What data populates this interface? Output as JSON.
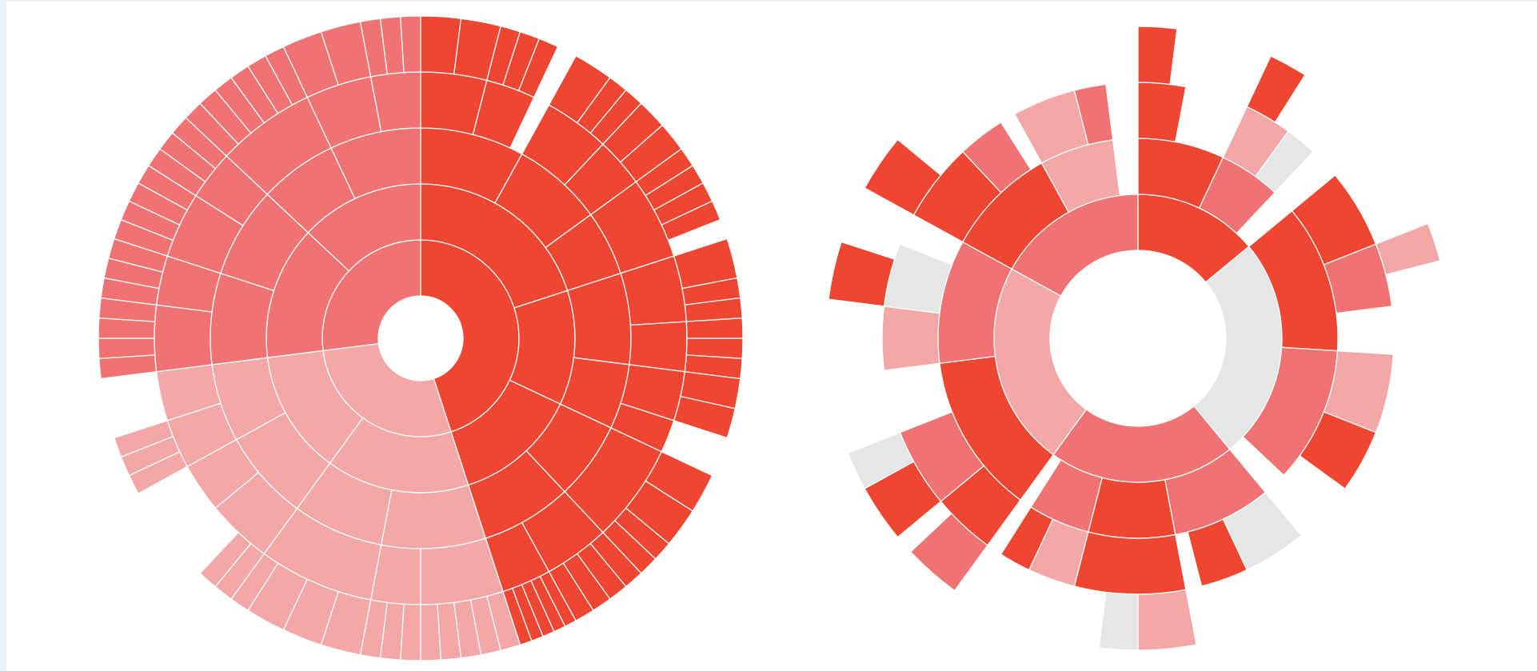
{
  "chart_data": [
    {
      "type": "sunburst",
      "nodes": [
        {
          "value": 45,
          "color": "#ee4631",
          "children": [
            {
              "value": 20,
              "children": [
                {
                  "value": 8,
                  "children": [
                    {
                      "value": 4,
                      "children": [
                        2,
                        2
                      ]
                    },
                    {
                      "value": 3,
                      "children": [
                        1,
                        1,
                        1
                      ]
                    }
                  ]
                },
                {
                  "value": 7,
                  "children": [
                    {
                      "value": 4,
                      "children": [
                        2,
                        1,
                        1
                      ]
                    },
                    {
                      "value": 3,
                      "children": [
                        1.5,
                        1.5
                      ]
                    }
                  ]
                },
                {
                  "value": 5,
                  "children": [
                    {
                      "value": 5,
                      "children": [
                        1,
                        1,
                        1,
                        1
                      ]
                    }
                  ]
                }
              ]
            },
            {
              "value": 12,
              "children": [
                {
                  "value": 7,
                  "children": [
                    {
                      "value": 4,
                      "children": [
                        2,
                        1,
                        1
                      ]
                    },
                    {
                      "value": 3,
                      "children": [
                        1,
                        1,
                        1
                      ]
                    }
                  ]
                },
                {
                  "value": 5,
                  "children": [
                    {
                      "value": 3,
                      "children": [
                        1.5,
                        1.5
                      ]
                    },
                    2
                  ]
                }
              ]
            },
            {
              "value": 13,
              "children": [
                {
                  "value": 6,
                  "children": [
                    {
                      "value": 6,
                      "children": [
                        2,
                        2,
                        1,
                        1
                      ]
                    }
                  ]
                },
                {
                  "value": 7,
                  "children": [
                    {
                      "value": 4,
                      "children": [
                        1,
                        1,
                        1,
                        1
                      ]
                    },
                    {
                      "value": 3,
                      "children": [
                        0.6,
                        0.6,
                        0.6,
                        0.6,
                        0.6
                      ]
                    }
                  ]
                }
              ]
            }
          ]
        },
        {
          "value": 28,
          "color": "#f4a7a7",
          "children": [
            {
              "value": 15,
              "children": [
                {
                  "value": 8,
                  "children": [
                    {
                      "value": 5,
                      "children": [
                        1,
                        1,
                        1,
                        1,
                        1
                      ]
                    },
                    {
                      "value": 3,
                      "children": [
                        1,
                        1,
                        1
                      ]
                    }
                  ]
                },
                {
                  "value": 7,
                  "children": [
                    {
                      "value": 7,
                      "children": [
                        2,
                        2,
                        2,
                        1
                      ]
                    }
                  ]
                }
              ]
            },
            {
              "value": 13,
              "children": [
                {
                  "value": 7,
                  "children": [
                    {
                      "value": 4,
                      "children": [
                        1,
                        1
                      ]
                    },
                    3
                  ]
                },
                {
                  "value": 6,
                  "children": [
                    {
                      "value": 3,
                      "children": [
                        1,
                        1,
                        1
                      ]
                    },
                    3
                  ]
                }
              ]
            }
          ]
        },
        {
          "value": 27,
          "color": "#f07272",
          "children": [
            {
              "value": 14,
              "children": [
                {
                  "value": 7,
                  "children": [
                    {
                      "value": 4,
                      "children": [
                        1,
                        1,
                        1,
                        1
                      ]
                    },
                    {
                      "value": 3,
                      "children": [
                        1,
                        1,
                        1
                      ]
                    }
                  ]
                },
                {
                  "value": 7,
                  "children": [
                    {
                      "value": 4,
                      "children": [
                        1,
                        1,
                        1,
                        1
                      ]
                    },
                    {
                      "value": 3,
                      "children": [
                        1,
                        1,
                        1
                      ]
                    }
                  ]
                }
              ]
            },
            {
              "value": 13,
              "children": [
                {
                  "value": 6,
                  "children": [
                    {
                      "value": 6,
                      "children": [
                        1,
                        1,
                        1,
                        1,
                        1,
                        1
                      ]
                    }
                  ]
                },
                {
                  "value": 7,
                  "children": [
                    {
                      "value": 4,
                      "children": [
                        2,
                        2
                      ]
                    },
                    {
                      "value": 3,
                      "children": [
                        1,
                        1,
                        1
                      ]
                    }
                  ]
                }
              ]
            }
          ]
        }
      ]
    },
    {
      "type": "sunburst",
      "nodes": [
        {
          "value": 14,
          "color": "#ee4631",
          "children": [
            {
              "value": 7,
              "color": "#ee4631",
              "children": [
                {
                  "value": 3,
                  "color": "#ee4631",
                  "children": [
                    {
                      "value": 2,
                      "color": "#ee4631"
                    }
                  ]
                }
              ]
            },
            {
              "value": 5,
              "color": "#f07272",
              "children": [
                {
                  "value": 3,
                  "color": "#f4a7a7",
                  "children": [
                    {
                      "value": 2,
                      "color": "#ee4631"
                    }
                  ]
                },
                {
                  "value": 2,
                  "color": "#e6e6e6"
                }
              ]
            }
          ]
        },
        {
          "value": 25,
          "color": "#e6e6e6",
          "children": [
            {
              "value": 12,
              "color": "#ee4631",
              "children": [
                {
                  "value": 5,
                  "color": "#ee4631"
                },
                {
                  "value": 4,
                  "color": "#f07272",
                  "children": [
                    {
                      "value": 2,
                      "color": "#f4a7a7"
                    }
                  ]
                }
              ]
            },
            {
              "value": 11,
              "color": "#f07272",
              "children": [
                {
                  "value": 5,
                  "color": "#f4a7a7"
                },
                {
                  "value": 4,
                  "color": "#ee4631"
                }
              ]
            }
          ]
        },
        {
          "value": 21,
          "color": "#f07272",
          "children": [
            {
              "value": 8,
              "color": "#f07272",
              "children": [
                {
                  "value": 4,
                  "color": "#e6e6e6"
                },
                {
                  "value": 3,
                  "color": "#ee4631"
                }
              ]
            },
            {
              "value": 7,
              "color": "#ee4631",
              "children": [
                {
                  "value": 7,
                  "color": "#ee4631",
                  "children": [
                    {
                      "value": 3,
                      "color": "#f4a7a7"
                    },
                    {
                      "value": 2,
                      "color": "#e6e6e6"
                    }
                  ]
                }
              ]
            },
            {
              "value": 5,
              "color": "#f07272",
              "children": [
                {
                  "value": 3,
                  "color": "#f4a7a7"
                },
                {
                  "value": 2,
                  "color": "#ee4631"
                }
              ]
            }
          ]
        },
        {
          "value": 23,
          "color": "#f4a7a7",
          "children": [
            {
              "value": 13,
              "color": "#ee4631",
              "children": [
                {
                  "value": 4,
                  "color": "#ee4631",
                  "children": [
                    {
                      "value": 3,
                      "color": "#f07272"
                    }
                  ]
                },
                {
                  "value": 5,
                  "color": "#f07272",
                  "children": [
                    {
                      "value": 3,
                      "color": "#ee4631"
                    },
                    {
                      "value": 2,
                      "color": "#e6e6e6"
                    }
                  ]
                }
              ]
            },
            {
              "value": 10,
              "color": "#f07272",
              "children": [
                {
                  "value": 4,
                  "color": "#f4a7a7"
                },
                {
                  "value": 4,
                  "color": "#e6e6e6",
                  "children": [
                    {
                      "value": 3,
                      "color": "#ee4631"
                    }
                  ]
                }
              ]
            }
          ]
        },
        {
          "value": 17,
          "color": "#f07272",
          "children": [
            {
              "value": 9,
              "color": "#ee4631",
              "children": [
                {
                  "value": 5,
                  "color": "#ee4631",
                  "children": [
                    {
                      "value": 3,
                      "color": "#ee4631"
                    }
                  ]
                },
                {
                  "value": 3,
                  "color": "#f07272"
                }
              ]
            },
            {
              "value": 6,
              "color": "#f4a7a7",
              "children": [
                {
                  "value": 4,
                  "color": "#f4a7a7"
                },
                {
                  "value": 2,
                  "color": "#f07272"
                }
              ]
            }
          ]
        }
      ]
    }
  ]
}
